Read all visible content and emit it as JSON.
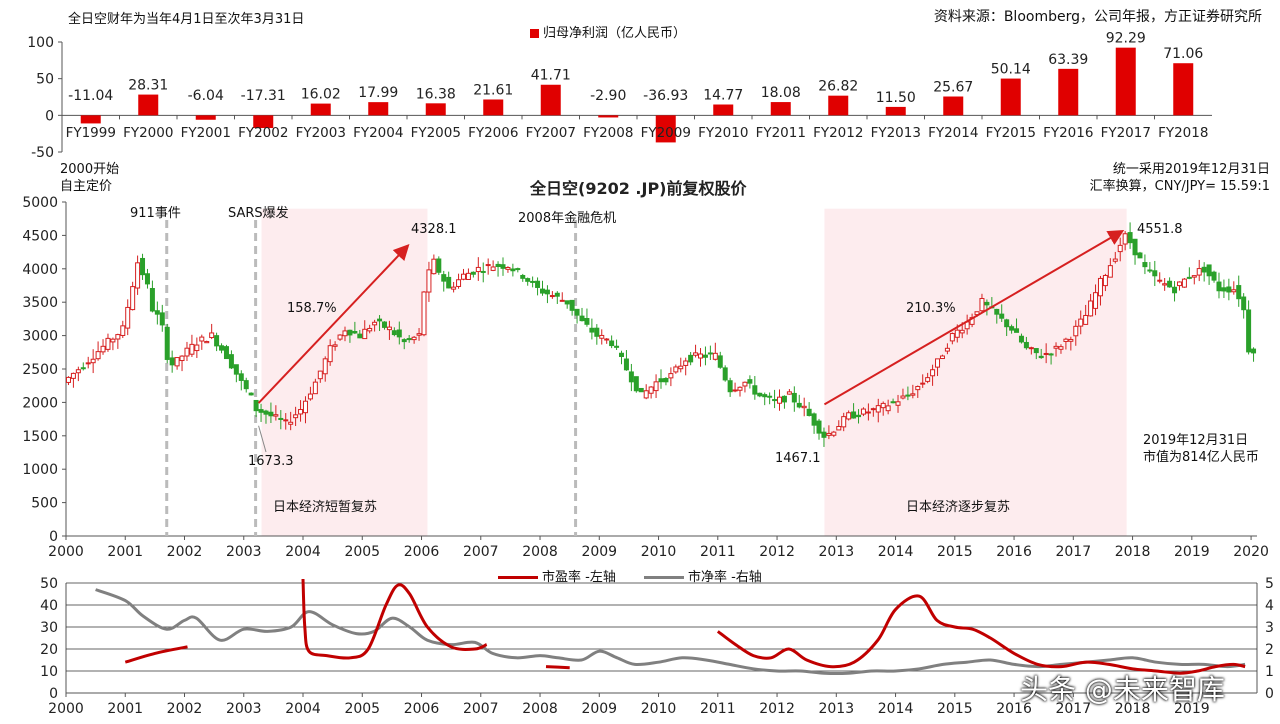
{
  "header": {
    "fiscal_note": "全日空财年为当年4月1日至次年3月31日",
    "source": "资料来源：Bloomberg，公司年报，方正证券研究所"
  },
  "chart_data": [
    {
      "type": "bar",
      "series": [
        {
          "name": "归母净利润（亿人民币）",
          "values": [
            -11.04,
            28.31,
            -6.04,
            -17.31,
            16.02,
            17.99,
            16.38,
            21.61,
            41.71,
            -2.9,
            -36.93,
            14.77,
            18.08,
            26.82,
            11.5,
            25.67,
            50.14,
            63.39,
            92.29,
            71.06
          ],
          "value_labels": [
            "-11.04",
            "28.31",
            "-6.04",
            "-17.31",
            "16.02",
            "17.99",
            "16.38",
            "21.61",
            "41.71",
            "-2.90",
            "-36.93",
            "14.77",
            "18.08",
            "26.82",
            "11.50",
            "25.67",
            "50.14",
            "63.39",
            "92.29",
            "71.06"
          ]
        }
      ],
      "categories": [
        "FY1999",
        "FY2000",
        "FY2001",
        "FY2002",
        "FY2003",
        "FY2004",
        "FY2005",
        "FY2006",
        "FY2007",
        "FY2008",
        "FY2009",
        "FY2010",
        "FY2011",
        "FY2012",
        "FY2013",
        "FY2014",
        "FY2015",
        "FY2016",
        "FY2017",
        "FY2018"
      ],
      "ylim": [
        -50,
        100
      ],
      "yticks": [
        "100",
        "50",
        "0",
        "-50"
      ],
      "color": "#e00000",
      "legend": "top-center"
    },
    {
      "type": "line",
      "title": "全日空(9202 .JP)前复权股价",
      "style": "candlestick",
      "xticks": [
        "2000",
        "2001",
        "2002",
        "2003",
        "2004",
        "2005",
        "2006",
        "2007",
        "2008",
        "2009",
        "2010",
        "2011",
        "2012",
        "2013",
        "2014",
        "2015",
        "2016",
        "2017",
        "2018",
        "2019",
        "2020"
      ],
      "yticks": [
        "5000",
        "4500",
        "4000",
        "3500",
        "3000",
        "2500",
        "2000",
        "1500",
        "1000",
        "500",
        "0"
      ],
      "ylim": [
        0,
        5000
      ],
      "xlim": [
        2000,
        2020.1
      ],
      "series": [
        {
          "name": "",
          "x": [
            2000.0,
            2000.25,
            2000.5,
            2000.75,
            2001.0,
            2001.15,
            2001.25,
            2001.4,
            2001.5,
            2001.65,
            2001.75,
            2001.85,
            2002.0,
            2002.25,
            2002.5,
            2002.75,
            2003.0,
            2003.15,
            2003.25,
            2003.5,
            2003.75,
            2004.0,
            2004.25,
            2004.5,
            2004.75,
            2005.0,
            2005.25,
            2005.5,
            2005.75,
            2006.0,
            2006.1,
            2006.25,
            2006.5,
            2006.75,
            2007.0,
            2007.25,
            2007.5,
            2007.75,
            2008.0,
            2008.25,
            2008.5,
            2008.75,
            2009.0,
            2009.25,
            2009.5,
            2009.75,
            2010.0,
            2010.25,
            2010.5,
            2010.75,
            2011.0,
            2011.25,
            2011.5,
            2011.75,
            2012.0,
            2012.25,
            2012.5,
            2012.75,
            2012.85,
            2013.0,
            2013.25,
            2013.5,
            2013.75,
            2014.0,
            2014.25,
            2014.5,
            2014.75,
            2015.0,
            2015.25,
            2015.5,
            2015.75,
            2016.0,
            2016.25,
            2016.5,
            2016.75,
            2017.0,
            2017.25,
            2017.5,
            2017.75,
            2017.9,
            2018.0,
            2018.25,
            2018.5,
            2018.75,
            2019.0,
            2019.25,
            2019.5,
            2019.75,
            2019.9,
            2020.0
          ],
          "y": [
            2300,
            2500,
            2700,
            2900,
            3100,
            3700,
            4100,
            3800,
            3400,
            3200,
            2700,
            2550,
            2700,
            2900,
            3000,
            2700,
            2300,
            2100,
            1900,
            1800,
            1680,
            1900,
            2300,
            2800,
            3100,
            3000,
            3200,
            3100,
            2900,
            3000,
            3800,
            4100,
            3700,
            3900,
            4000,
            4050,
            4050,
            3900,
            3700,
            3600,
            3500,
            3200,
            3000,
            2900,
            2500,
            2100,
            2300,
            2400,
            2650,
            2700,
            2700,
            2200,
            2300,
            2100,
            2000,
            2100,
            1900,
            1600,
            1480,
            1600,
            1800,
            1850,
            1900,
            2000,
            2100,
            2300,
            2600,
            3000,
            3200,
            3500,
            3300,
            3100,
            2800,
            2700,
            2800,
            3000,
            3300,
            3800,
            4200,
            4500,
            4400,
            4000,
            3800,
            3700,
            3900,
            4000,
            3700,
            3700,
            3500,
            2800
          ]
        }
      ],
      "annotations": [
        {
          "text": "2000开始\n自主定价"
        },
        {
          "text": "911事件",
          "x": 2001.7
        },
        {
          "text": "SARS爆发",
          "x": 2003.2
        },
        {
          "text": "2008年金融危机",
          "x": 2008.6
        },
        {
          "text": "4328.1"
        },
        {
          "text": "1673.3"
        },
        {
          "text": "158.7%"
        },
        {
          "text": "日本经济短暂复苏"
        },
        {
          "text": "1467.1"
        },
        {
          "text": "4551.8"
        },
        {
          "text": "210.3%"
        },
        {
          "text": "日本经济逐步复苏"
        },
        {
          "text": "统一采用2019年12月31日\n汇率换算，CNY/JPY= 15.59:1"
        },
        {
          "text": "2019年12月31日\n市值为814亿人民币"
        }
      ],
      "shaded_periods": [
        [
          2003.3,
          2006.1
        ],
        [
          2012.8,
          2017.9
        ]
      ],
      "event_lines": [
        2001.7,
        2003.2,
        2008.6
      ],
      "trend_arrows": [
        {
          "from": [
            2003.25,
            1990
          ],
          "to": [
            2005.75,
            4328
          ]
        },
        {
          "from": [
            2012.8,
            1970
          ],
          "to": [
            2017.8,
            4551
          ]
        }
      ]
    },
    {
      "type": "line",
      "xticks": [
        "2000",
        "2001",
        "2002",
        "2003",
        "2004",
        "2005",
        "2006",
        "2007",
        "2008",
        "2009",
        "2010",
        "2011",
        "2012",
        "2013",
        "2014",
        "2015",
        "2016",
        "2017",
        "2018",
        "2019"
      ],
      "xlim": [
        2000,
        2020.1
      ],
      "ylim": [
        0,
        50
      ],
      "yticks_left": [
        "50",
        "40",
        "30",
        "20",
        "10",
        "0"
      ],
      "ylim_right": [
        0,
        5
      ],
      "yticks_right": [
        "5",
        "4",
        "3",
        "2",
        "1",
        "0"
      ],
      "legend": "top-center",
      "series": [
        {
          "name": "市盈率 -左轴",
          "axis": "left",
          "color": "#c00000",
          "segments": [
            {
              "x": [
                2001.0,
                2001.5,
                2002.05
              ],
              "y": [
                14,
                18,
                21
              ]
            },
            {
              "x": [
                2004.0,
                2004.03,
                2004.1,
                2004.4,
                2004.8,
                2005.1,
                2005.4,
                2005.6,
                2005.8,
                2006.1,
                2006.5,
                2006.9,
                2007.1
              ],
              "y": [
                52,
                30,
                19,
                17,
                16,
                20,
                40,
                49,
                45,
                30,
                21,
                20,
                22
              ]
            },
            {
              "x": [
                2008.1,
                2008.5
              ],
              "y": [
                12,
                11.5
              ]
            },
            {
              "x": [
                2011.0,
                2011.3,
                2011.6,
                2011.9,
                2012.2,
                2012.5,
                2012.9,
                2013.3,
                2013.7,
                2014.0,
                2014.4,
                2014.7,
                2015.0,
                2015.3,
                2015.6,
                2016.0,
                2016.4,
                2016.8,
                2017.2,
                2017.6,
                2018.0,
                2018.4,
                2018.8,
                2019.1,
                2019.4,
                2019.7,
                2019.9
              ],
              "y": [
                28,
                22,
                17,
                16,
                20,
                15,
                12,
                14,
                24,
                38,
                44,
                33,
                30,
                29,
                25,
                18,
                13,
                12,
                14,
                13,
                11,
                10,
                9,
                10,
                12,
                13,
                12
              ]
            }
          ]
        },
        {
          "name": "市净率 -右轴",
          "axis": "right",
          "color": "#808080",
          "x": [
            2000.5,
            2001.0,
            2001.3,
            2001.7,
            2002.0,
            2002.2,
            2002.6,
            2003.0,
            2003.4,
            2003.8,
            2004.1,
            2004.5,
            2004.9,
            2005.2,
            2005.5,
            2005.8,
            2006.1,
            2006.5,
            2006.9,
            2007.2,
            2007.6,
            2008.0,
            2008.3,
            2008.7,
            2009.0,
            2009.3,
            2009.6,
            2010.0,
            2010.4,
            2010.8,
            2011.2,
            2011.6,
            2012.0,
            2012.4,
            2012.8,
            2013.2,
            2013.6,
            2014.0,
            2014.4,
            2014.8,
            2015.2,
            2015.6,
            2016.0,
            2016.4,
            2016.8,
            2017.2,
            2017.6,
            2018.0,
            2018.4,
            2018.8,
            2019.2,
            2019.6,
            2019.9
          ],
          "y": [
            4.7,
            4.2,
            3.5,
            2.9,
            3.3,
            3.4,
            2.4,
            2.9,
            2.8,
            3.0,
            3.7,
            3.1,
            2.7,
            2.8,
            3.4,
            3.0,
            2.4,
            2.2,
            2.3,
            1.8,
            1.6,
            1.7,
            1.6,
            1.5,
            1.9,
            1.6,
            1.3,
            1.4,
            1.6,
            1.5,
            1.3,
            1.1,
            1.0,
            1.0,
            0.9,
            0.9,
            1.0,
            1.0,
            1.1,
            1.3,
            1.4,
            1.5,
            1.3,
            1.2,
            1.3,
            1.4,
            1.5,
            1.6,
            1.4,
            1.3,
            1.3,
            1.2,
            1.3
          ]
        }
      ]
    }
  ],
  "watermark": "头条 @未来智库"
}
